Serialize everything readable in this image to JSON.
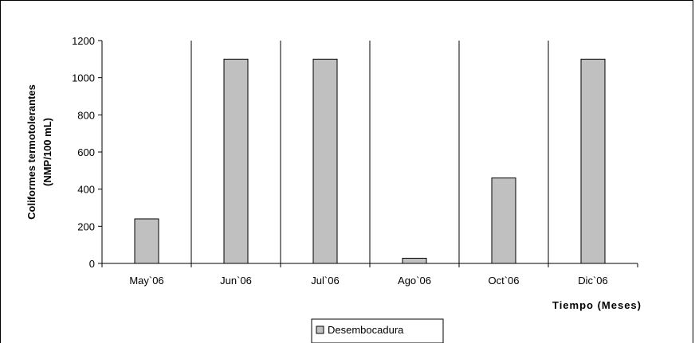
{
  "chart_data": {
    "type": "bar",
    "categories": [
      "May`06",
      "Jun`06",
      "Jul`06",
      "Ago`06",
      "Oct`06",
      "Dic`06"
    ],
    "series": [
      {
        "name": "Desembocadura",
        "values": [
          240,
          1100,
          1100,
          28,
          460,
          1100
        ]
      }
    ],
    "ylim": [
      0,
      1200
    ],
    "yticks": [
      0,
      200,
      400,
      600,
      800,
      1000,
      1200
    ],
    "ylabel_line1": "Coliformes termotolerantes",
    "ylabel_line2": "(NMP/100 mL)",
    "xlabel": "Tiempo (Meses)",
    "legend_position": "bottom-center",
    "bar_color": "#c0c0c0",
    "grid": "vertical-separators"
  }
}
